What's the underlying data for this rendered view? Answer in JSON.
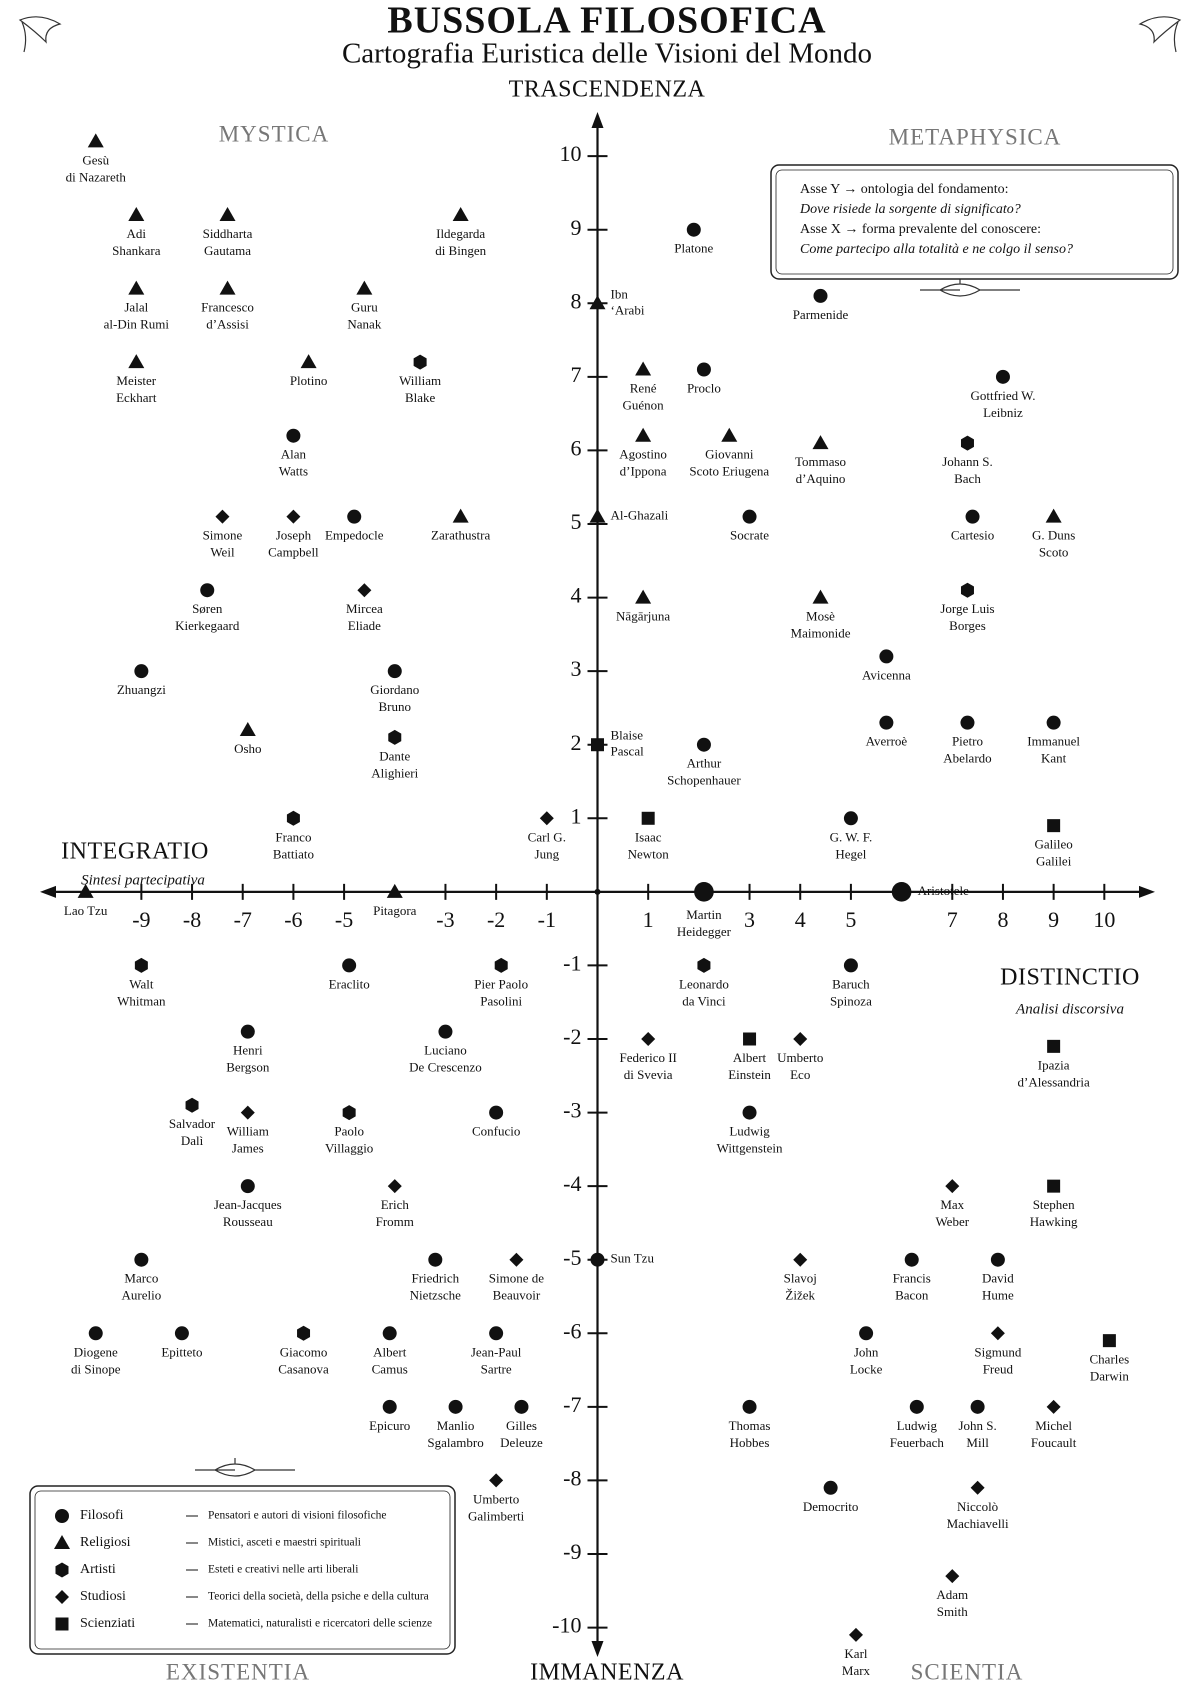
{
  "chart_data": {
    "type": "scatter",
    "title": "BUSSOLA FILOSOFICA",
    "subtitle": "Cartografia Euristica delle Visioni del Mondo",
    "y_top_label": "TRASCENDENZA",
    "y_bottom_label": "IMMANENZA",
    "x_left_label": "INTEGRATIO",
    "x_left_sublabel": "Sintesi partecipativa",
    "x_right_label": "DISTINCTIO",
    "x_right_sublabel": "Analisi discorsiva",
    "quadrants": [
      "MYSTICA",
      "METAPHYSICA",
      "EXISTENTIA",
      "SCIENTIA"
    ],
    "note": [
      "Asse Y → ontologia del fondamento:",
      "Dove risiede la sorgente di significato?",
      "Asse X → forma prevalente del conoscere:",
      "Come partecipo alla totalità e ne colgo il senso?"
    ],
    "xlim": [
      -11,
      11
    ],
    "ylim": [
      -10.4,
      10.6
    ],
    "xticks": [
      -9,
      -8,
      -7,
      -6,
      -5,
      -3,
      -2,
      -1,
      1,
      3,
      4,
      5,
      7,
      8,
      9,
      10
    ],
    "yticks": [
      10,
      9,
      8,
      7,
      6,
      5,
      4,
      3,
      2,
      1,
      -1,
      -2,
      -3,
      -4,
      -5,
      -6,
      -7,
      -8,
      -9,
      -10
    ],
    "series": [
      {
        "name": "Filosofi",
        "description": "Pensatori e autori di visioni filosofiche",
        "marker": "circle",
        "color": "#111111",
        "x": [
          1.9,
          4.4,
          2.1,
          8.0,
          -6.0,
          -4.8,
          3.0,
          7.4,
          -7.7,
          -9.0,
          -4.0,
          5.7,
          2.1,
          5.7,
          7.3,
          9.0,
          5.0,
          2.1,
          6.0,
          -4.9,
          5.0,
          -6.9,
          -3.0,
          -2.0,
          3.0,
          -6.9,
          -9.0,
          -3.2,
          0,
          6.2,
          7.9,
          -9.9,
          -8.2,
          -4.1,
          -2.0,
          5.3,
          -4.1,
          -2.8,
          -1.5,
          3.0,
          6.3,
          7.5,
          4.6
        ],
        "values": [
          9.0,
          8.1,
          7.1,
          7.0,
          6.2,
          5.1,
          5.1,
          5.1,
          4.1,
          3.0,
          3.0,
          3.2,
          2.0,
          2.3,
          2.3,
          2.3,
          1.0,
          0,
          0,
          -1.0,
          -1.0,
          -1.9,
          -1.9,
          -3.0,
          -3.0,
          -4.0,
          -5.0,
          -5.0,
          -5.0,
          -5.0,
          -5.0,
          -6.0,
          -6.0,
          -6.0,
          -6.0,
          -6.0,
          -7.0,
          -7.0,
          -7.0,
          -7.0,
          -7.0,
          -7.0,
          -8.1
        ],
        "labels": [
          [
            "Platone"
          ],
          [
            "Parmenide"
          ],
          [
            "Proclo"
          ],
          [
            "Gottfried W.",
            "Leibniz"
          ],
          [
            "Alan",
            "Watts"
          ],
          [
            "Empedocle"
          ],
          [
            "Socrate"
          ],
          [
            "Cartesio"
          ],
          [
            "Søren",
            "Kierkegaard"
          ],
          [
            "Zhuangzi"
          ],
          [
            "Giordano",
            "Bruno"
          ],
          [
            "Avicenna"
          ],
          [
            "Arthur",
            "Schopenhauer"
          ],
          [
            "Averroè"
          ],
          [
            "Pietro",
            "Abelardo"
          ],
          [
            "Immanuel",
            "Kant"
          ],
          [
            "G. W. F.",
            "Hegel"
          ],
          [
            "Martin",
            "Heidegger"
          ],
          [
            "Aristotele"
          ],
          [
            "Eraclito"
          ],
          [
            "Baruch",
            "Spinoza"
          ],
          [
            "Henri",
            "Bergson"
          ],
          [
            "Luciano",
            "De Crescenzo"
          ],
          [
            "Confucio"
          ],
          [
            "Ludwig",
            "Wittgenstein"
          ],
          [
            "Jean-Jacques",
            "Rousseau"
          ],
          [
            "Marco",
            "Aurelio"
          ],
          [
            "Friedrich",
            "Nietzsche"
          ],
          [
            "Sun Tzu"
          ],
          [
            "Francis",
            "Bacon"
          ],
          [
            "David",
            "Hume"
          ],
          [
            "Diogene",
            "di Sinope"
          ],
          [
            "Epitteto"
          ],
          [
            "Albert",
            "Camus"
          ],
          [
            "Jean-Paul",
            "Sartre"
          ],
          [
            "John",
            "Locke"
          ],
          [
            "Epicuro"
          ],
          [
            "Manlio",
            "Sgalambro"
          ],
          [
            "Gilles",
            "Deleuze"
          ],
          [
            "Thomas",
            "Hobbes"
          ],
          [
            "Ludwig",
            "Feuerbach"
          ],
          [
            "John S.",
            "Mill"
          ],
          [
            "Democrito"
          ]
        ]
      },
      {
        "name": "Religiosi",
        "description": "Mistici, asceti e maestri spirituali",
        "marker": "triangle",
        "color": "#111111",
        "x": [
          -9.9,
          -9.1,
          -7.3,
          -2.7,
          -9.1,
          -7.3,
          -4.6,
          0,
          -9.1,
          -5.7,
          0.9,
          0.9,
          2.6,
          4.4,
          0,
          -2.7,
          9.0,
          0.9,
          4.4,
          -6.9,
          -10.1,
          -4.0
        ],
        "values": [
          10.2,
          9.2,
          9.2,
          9.2,
          8.2,
          8.2,
          8.2,
          8.0,
          7.2,
          7.2,
          7.1,
          6.2,
          6.2,
          6.1,
          5.1,
          5.1,
          5.1,
          4.0,
          4.0,
          2.2,
          0,
          0
        ],
        "labels": [
          [
            "Gesù",
            "di Nazareth"
          ],
          [
            "Adi",
            "Shankara"
          ],
          [
            "Siddharta",
            "Gautama"
          ],
          [
            "Ildegarda",
            "di Bingen"
          ],
          [
            "Jalal",
            "al-Din Rumi"
          ],
          [
            "Francesco",
            "d’Assisi"
          ],
          [
            "Guru",
            "Nanak"
          ],
          [
            "Ibn",
            "‘Arabi"
          ],
          [
            "Meister",
            "Eckhart"
          ],
          [
            "Plotino"
          ],
          [
            "René",
            "Guénon"
          ],
          [
            "Agostino",
            "d’Ippona"
          ],
          [
            "Giovanni",
            "Scoto Eriugena"
          ],
          [
            "Tommaso",
            "d’Aquino"
          ],
          [
            "Al-Ghazali"
          ],
          [
            "Zarathustra"
          ],
          [
            "G. Duns",
            "Scoto"
          ],
          [
            "Nāgārjuna"
          ],
          [
            "Mosè",
            "Maimonide"
          ],
          [
            "Osho"
          ],
          [
            "Lao Tzu"
          ],
          [
            "Pitagora"
          ]
        ]
      },
      {
        "name": "Artisti",
        "description": "Esteti e creativi nelle arti liberali",
        "marker": "hexagon",
        "color": "#111111",
        "x": [
          -3.5,
          7.3,
          7.3,
          -4.0,
          -6.0,
          -9.0,
          -1.9,
          2.1,
          -8.0,
          -4.9,
          -5.8
        ],
        "values": [
          7.2,
          6.1,
          4.1,
          2.1,
          1.0,
          -1.0,
          -1.0,
          -1.0,
          -2.9,
          -3.0,
          -6.0
        ],
        "labels": [
          [
            "William",
            "Blake"
          ],
          [
            "Johann S.",
            "Bach"
          ],
          [
            "Jorge Luis",
            "Borges"
          ],
          [
            "Dante",
            "Alighieri"
          ],
          [
            "Franco",
            "Battiato"
          ],
          [
            "Walt",
            "Whitman"
          ],
          [
            "Pier Paolo",
            "Pasolini"
          ],
          [
            "Leonardo",
            "da Vinci"
          ],
          [
            "Salvador",
            "Dalì"
          ],
          [
            "Paolo",
            "Villaggio"
          ],
          [
            "Giacomo",
            "Casanova"
          ]
        ]
      },
      {
        "name": "Studiosi",
        "description": "Teorici della società, della psiche e della cultura",
        "marker": "diamond",
        "color": "#111111",
        "x": [
          -7.4,
          -6.0,
          -4.6,
          -1.0,
          1.0,
          4.0,
          -6.9,
          -4.0,
          7.0,
          -1.6,
          4.0,
          7.9,
          9.0,
          -2.0,
          7.5,
          7.0,
          5.1
        ],
        "values": [
          5.1,
          5.1,
          4.1,
          1.0,
          -2.0,
          -2.0,
          -3.0,
          -4.0,
          -4.0,
          -5.0,
          -5.0,
          -6.0,
          -7.0,
          -8.0,
          -8.1,
          -9.3,
          -10.1
        ],
        "labels": [
          [
            "Simone",
            "Weil"
          ],
          [
            "Joseph",
            "Campbell"
          ],
          [
            "Mircea",
            "Eliade"
          ],
          [
            "Carl G.",
            "Jung"
          ],
          [
            "Federico II",
            "di Svevia"
          ],
          [
            "Umberto",
            "Eco"
          ],
          [
            "William",
            "James"
          ],
          [
            "Erich",
            "Fromm"
          ],
          [
            "Max",
            "Weber"
          ],
          [
            "Simone de",
            "Beauvoir"
          ],
          [
            "Slavoj",
            "Žižek"
          ],
          [
            "Sigmund",
            "Freud"
          ],
          [
            "Michel",
            "Foucault"
          ],
          [
            "Umberto",
            "Galimberti"
          ],
          [
            "Niccolò",
            "Machiavelli"
          ],
          [
            "Adam",
            "Smith"
          ],
          [
            "Karl",
            "Marx"
          ]
        ]
      },
      {
        "name": "Scienziati",
        "description": "Matematici, naturalisti e ricercatori delle scienze",
        "marker": "square",
        "color": "#111111",
        "x": [
          0,
          1.0,
          9.0,
          3.0,
          9.0,
          9.0,
          10.1
        ],
        "values": [
          2.0,
          1.0,
          0.9,
          -2.0,
          -2.1,
          -4.0,
          -6.1
        ],
        "labels": [
          [
            "Blaise",
            "Pascal"
          ],
          [
            "Isaac",
            "Newton"
          ],
          [
            "Galileo",
            "Galilei"
          ],
          [
            "Albert",
            "Einstein"
          ],
          [
            "Ipazia",
            "d’Alessandria"
          ],
          [
            "Stephen",
            "Hawking"
          ],
          [
            "Charles",
            "Darwin"
          ]
        ]
      }
    ]
  }
}
